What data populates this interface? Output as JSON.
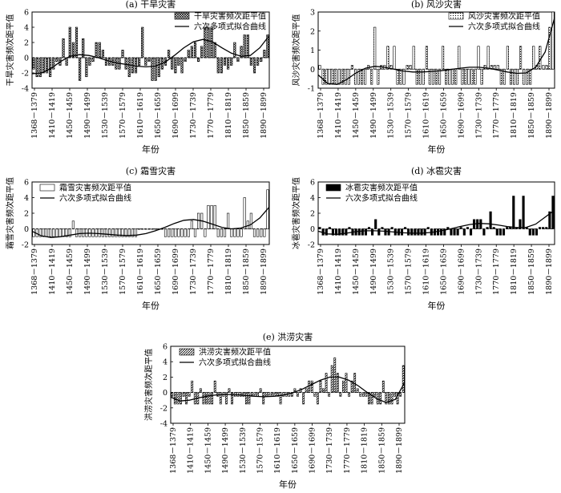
{
  "chart_data": [
    {
      "type": "bar",
      "title": "(a) 干旱灾害",
      "ylabel": "干旱灾害频次距平值",
      "xlabel": "年份",
      "ylim": [
        -4,
        6
      ],
      "yticks": [
        -4,
        -2,
        0,
        2,
        4,
        6
      ],
      "tick_labels": [
        "1368－1379",
        "1410－1419",
        "1450－1459",
        "1490－1499",
        "1530－1539",
        "1570－1579",
        "1610－1619",
        "1650－1659",
        "1690－1699",
        "1730－1739",
        "1770－1779",
        "1810－1819",
        "1850－1859",
        "1890－1899"
      ],
      "legend_position": "top-right",
      "bar_pattern": "crosshatch",
      "series": [
        {
          "name": "干旱灾害频次距平值",
          "values": [
            -1.5,
            -2.5,
            -2.5,
            -2,
            -2,
            -2.5,
            -1.5,
            -0.5,
            -1,
            2.5,
            -1,
            4,
            2,
            4,
            -3,
            2.5,
            -2.5,
            -1,
            -0.5,
            2,
            2,
            1,
            -1,
            -1,
            -1,
            -1.5,
            -1.5,
            1,
            -1.5,
            -2.5,
            -2,
            -2,
            -1,
            4,
            -1,
            -0.5,
            -3,
            -3,
            -2.5,
            -1.5,
            -1,
            1,
            -1.5,
            -2,
            -1,
            -2,
            -0.5,
            1,
            1.5,
            2,
            -0.5,
            1.5,
            4,
            4,
            4,
            2,
            -2,
            -2,
            -1,
            -1.5,
            -1,
            2,
            -0.5,
            1.5,
            3,
            3,
            -1,
            -2,
            -1,
            -0.5,
            1,
            3
          ]
        },
        {
          "name": "六次多项式拟合曲线",
          "type": "line",
          "values": [
            -2.1,
            -2.0,
            -1.4,
            -0.5,
            0.2,
            0.4,
            0.3,
            0.0,
            -0.4,
            -0.7,
            -0.9,
            -1.1,
            -1.2,
            -1.1,
            -0.6,
            0.3,
            1.3,
            2.1,
            2.4,
            2.1,
            1.3,
            0.6,
            0.2,
            0.3,
            1.3,
            2.9
          ]
        }
      ]
    },
    {
      "type": "bar",
      "title": "(b) 风沙灾害",
      "ylabel": "风沙灾害频次距平值",
      "xlabel": "年份",
      "ylim": [
        -1,
        3
      ],
      "yticks": [
        -1,
        0,
        1,
        2,
        3
      ],
      "tick_labels": [
        "1368－1379",
        "1410－1419",
        "1450－1459",
        "1490－1499",
        "1530－1539",
        "1570－1579",
        "1610－1619",
        "1650－1659",
        "1690－1699",
        "1730－1739",
        "1770－1779",
        "1810－1819",
        "1850－1859",
        "1890－1899"
      ],
      "legend_position": "top-right",
      "bar_pattern": "dotted",
      "series": [
        {
          "name": "风沙灾害频次距平值",
          "values": [
            0.2,
            -0.8,
            -0.8,
            -0.8,
            -0.8,
            -0.8,
            -0.8,
            -0.8,
            -0.8,
            -0.8,
            0.2,
            -0.8,
            -0.8,
            -0.8,
            -0.8,
            0.2,
            -0.8,
            2.2,
            -0.8,
            0.2,
            0.2,
            1.2,
            0.2,
            1.2,
            -0.8,
            -0.8,
            -0.8,
            0.2,
            0.2,
            1.2,
            -0.8,
            -0.8,
            -0.8,
            1.2,
            -0.8,
            -0.8,
            -0.8,
            -0.8,
            1.2,
            -0.8,
            -0.8,
            -0.8,
            -0.8,
            1.2,
            -0.8,
            -0.8,
            -0.8,
            -0.8,
            -0.8,
            1.2,
            -0.8,
            0.2,
            1.2,
            0.2,
            0.2,
            0.2,
            -0.8,
            -0.8,
            1.2,
            -0.8,
            -0.8,
            -0.8,
            1.2,
            -0.8,
            -0.8,
            -0.8,
            1.2,
            0.2,
            1.2,
            0.2,
            0.2,
            2.2,
            3.0
          ]
        },
        {
          "name": "六次多项式拟合曲线",
          "type": "line",
          "values": [
            -0.3,
            -0.75,
            -0.8,
            -0.55,
            -0.2,
            0.05,
            0.15,
            0.1,
            0.0,
            -0.1,
            -0.15,
            -0.15,
            -0.12,
            -0.08,
            -0.02,
            0.05,
            0.1,
            0.1,
            0.05,
            -0.05,
            -0.15,
            -0.22,
            -0.2,
            0.1,
            0.9,
            2.7
          ]
        }
      ]
    },
    {
      "type": "bar",
      "title": "(c) 霜雪灾害",
      "ylabel": "霜雪灾害频次距平值",
      "xlabel": "年份",
      "ylim": [
        -2,
        6
      ],
      "yticks": [
        -2,
        0,
        2,
        4,
        6
      ],
      "tick_labels": [
        "1368－1379",
        "1410－1419",
        "1450－1459",
        "1490－1499",
        "1530－1539",
        "1570－1579",
        "1610－1619",
        "1650－1659",
        "1690－1699",
        "1730－1739",
        "1770－1779",
        "1810－1819",
        "1850－1859",
        "1890－1899"
      ],
      "legend_position": "top-left",
      "bar_pattern": "empty",
      "series": [
        {
          "name": "霜雪灾害频次距平值",
          "values": [
            -1,
            -1,
            -1,
            -1,
            -1,
            -1,
            -1,
            -1,
            -1,
            -1,
            -1,
            -1,
            1,
            -1,
            -1,
            -1,
            -1,
            -1,
            -1,
            -1,
            -1,
            -1,
            -1,
            -1,
            -1,
            -1,
            -1,
            -1,
            -1,
            -1,
            -1,
            -1,
            0,
            0,
            0,
            0,
            0,
            0,
            0,
            0,
            -1,
            -1,
            -1,
            -1,
            -1,
            -1,
            -1,
            -1,
            1,
            -1,
            2,
            2,
            -1,
            3,
            3,
            3,
            -1,
            -1,
            -1,
            2,
            -1,
            -1,
            -1,
            -1,
            4,
            1,
            2,
            -1,
            -1,
            -1,
            -1,
            5
          ]
        },
        {
          "name": "六次多项式拟合曲线",
          "type": "line",
          "values": [
            -0.3,
            -0.9,
            -1.1,
            -1.0,
            -0.8,
            -0.6,
            -0.55,
            -0.6,
            -0.7,
            -0.8,
            -0.85,
            -0.8,
            -0.6,
            -0.25,
            0.2,
            0.7,
            1.1,
            1.2,
            1.0,
            0.6,
            0.2,
            0.0,
            0.1,
            0.5,
            1.4,
            2.8
          ]
        }
      ]
    },
    {
      "type": "bar",
      "title": "(d) 冰雹灾害",
      "ylabel": "冰雹灾害频次距平值",
      "xlabel": "年份",
      "ylim": [
        -2,
        6
      ],
      "yticks": [
        -2,
        0,
        2,
        4,
        6
      ],
      "tick_labels": [
        "1368－1379",
        "1410－1419",
        "1450－1459",
        "1490－1499",
        "1530－1539",
        "1570－1579",
        "1610－1619",
        "1650－1659",
        "1690－1699",
        "1730－1739",
        "1770－1779",
        "1810－1819",
        "1850－1859",
        "1890－1899"
      ],
      "legend_position": "top-left",
      "bar_pattern": "solid",
      "series": [
        {
          "name": "冰雹灾害频次距平值",
          "values": [
            0.2,
            -0.8,
            -0.8,
            0.2,
            -0.8,
            -0.8,
            -0.8,
            -0.8,
            -0.8,
            0.2,
            -0.8,
            -0.8,
            -0.8,
            -0.8,
            -0.8,
            0.2,
            -0.8,
            1.2,
            -0.8,
            0.2,
            -0.8,
            -0.8,
            0.2,
            -0.8,
            -0.8,
            -0.8,
            0.2,
            -0.8,
            -0.8,
            -0.8,
            -0.8,
            -0.8,
            -0.8,
            0.2,
            -0.8,
            -0.8,
            -0.8,
            -0.8,
            -0.8,
            0.2,
            -0.8,
            -0.8,
            -0.8,
            0.2,
            -0.8,
            0.2,
            -0.8,
            1.2,
            1.2,
            1.2,
            -0.8,
            0.2,
            2.2,
            0.2,
            -0.8,
            -0.8,
            -0.8,
            0.2,
            0.2,
            4.2,
            0.2,
            1.2,
            4.2,
            0.2,
            -0.8,
            -0.8,
            -0.8,
            0.2,
            0.2,
            0.2,
            2.2,
            4.2
          ]
        },
        {
          "name": "六次多项式拟合曲线",
          "type": "line",
          "values": [
            -0.3,
            -0.65,
            -0.7,
            -0.55,
            -0.35,
            -0.25,
            -0.25,
            -0.3,
            -0.4,
            -0.5,
            -0.55,
            -0.55,
            -0.45,
            -0.25,
            0.0,
            0.3,
            0.55,
            0.7,
            0.65,
            0.5,
            0.3,
            0.15,
            0.2,
            0.6,
            1.5,
            2.4
          ]
        }
      ]
    },
    {
      "type": "bar",
      "title": "(e) 洪涝灾害",
      "ylabel": "洪涝灾害频次距平值",
      "xlabel": "年份",
      "ylim": [
        -4,
        6
      ],
      "yticks": [
        -4,
        -2,
        0,
        2,
        4,
        6
      ],
      "tick_labels": [
        "1368－1379",
        "1410－1419",
        "1450－1459",
        "1490－1499",
        "1530－1539",
        "1570－1579",
        "1610－1619",
        "1650－1659",
        "1690－1699",
        "1730－1739",
        "1770－1779",
        "1810－1819",
        "1850－1859",
        "1890－1899"
      ],
      "legend_position": "top-left",
      "bar_pattern": "diagonal",
      "series": [
        {
          "name": "洪涝灾害频次距平值",
          "values": [
            -0.5,
            -1.5,
            -1.5,
            -1.5,
            -0.5,
            -1.5,
            -0.5,
            1.5,
            -1.5,
            -1.5,
            0.5,
            -1.5,
            -1.5,
            -1.5,
            -1.5,
            1.5,
            -0.5,
            -1.5,
            -0.5,
            -1.5,
            0.5,
            -1.5,
            -0.5,
            -0.5,
            -0.5,
            -0.5,
            -1.5,
            -1.5,
            -0.5,
            -0.5,
            -0.5,
            0.5,
            -1.5,
            -0.5,
            -0.5,
            -0.5,
            -0.5,
            -0.5,
            -1.5,
            -0.5,
            -0.5,
            -0.5,
            -0.5,
            0.5,
            -0.5,
            0.5,
            -1.5,
            0.5,
            1.5,
            1.5,
            -0.5,
            -1.5,
            1.5,
            0.5,
            2.5,
            -0.5,
            3.5,
            4.5,
            2.5,
            -0.5,
            1.5,
            2.5,
            -0.5,
            1.5,
            2.5,
            0.5,
            -0.5,
            -0.5,
            -0.5,
            -1.5,
            -1.5,
            -0.5,
            -1.5,
            -1.5,
            1.5,
            -1.5,
            -1.5,
            -1.5,
            -0.5,
            -1.5,
            -0.5,
            3.5
          ]
        },
        {
          "name": "六次多项式拟合曲线",
          "type": "line",
          "values": [
            -0.6,
            -1.1,
            -1.0,
            -0.7,
            -0.45,
            -0.3,
            -0.25,
            -0.3,
            -0.4,
            -0.5,
            -0.55,
            -0.5,
            -0.35,
            -0.05,
            0.4,
            1.0,
            1.6,
            2.0,
            2.0,
            1.6,
            0.9,
            0.0,
            -0.8,
            -1.3,
            -0.9,
            1.3
          ]
        }
      ]
    }
  ]
}
